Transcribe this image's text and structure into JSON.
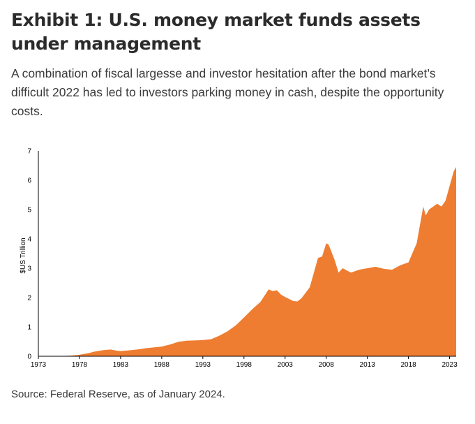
{
  "header": {
    "title": "Exhibit 1: U.S. money market funds assets under management",
    "subtitle": "A combination of fiscal largesse and investor hesitation after the bond market’s difficult 2022 has led to investors parking money in cash, despite the opportunity costs."
  },
  "footer": {
    "source": "Source: Federal Reserve, as of January 2024."
  },
  "colors": {
    "area": "#ee7d31",
    "axis": "#000000"
  },
  "chart_data": {
    "type": "area",
    "title": "",
    "xlabel": "",
    "ylabel": "$US Trillion",
    "xlim": [
      1973,
      2023.8
    ],
    "ylim": [
      0,
      7
    ],
    "x_ticks": [
      "1973",
      "1978",
      "1983",
      "1988",
      "1993",
      "1998",
      "2003",
      "2008",
      "2013",
      "2018",
      "2023"
    ],
    "y_ticks": [
      "0",
      "1",
      "2",
      "3",
      "4",
      "5",
      "6",
      "7"
    ],
    "grid": false,
    "legend": "none",
    "series": [
      {
        "x": [
          1973,
          1975,
          1976,
          1977,
          1978,
          1979,
          1980,
          1981,
          1981.8,
          1982.5,
          1983,
          1984,
          1985,
          1986,
          1987,
          1988,
          1989,
          1990,
          1991,
          1992,
          1993,
          1994,
          1995,
          1996,
          1997,
          1998,
          1999,
          2000,
          2001,
          2001.5,
          2002,
          2002.5,
          2003,
          2004,
          2004.5,
          2005,
          2006,
          2007,
          2007.5,
          2008,
          2008.3,
          2009,
          2009.5,
          2010,
          2011,
          2012,
          2013,
          2014,
          2015,
          2016,
          2017,
          2018,
          2019,
          2019.8,
          2020.1,
          2020.5,
          2021,
          2021.5,
          2022,
          2022.5,
          2023,
          2023.5,
          2023.8
        ],
        "values": [
          0,
          0.01,
          0.01,
          0.02,
          0.05,
          0.1,
          0.17,
          0.21,
          0.23,
          0.19,
          0.18,
          0.2,
          0.23,
          0.27,
          0.3,
          0.33,
          0.4,
          0.49,
          0.53,
          0.54,
          0.55,
          0.58,
          0.7,
          0.85,
          1.05,
          1.32,
          1.6,
          1.85,
          2.28,
          2.22,
          2.25,
          2.1,
          2.02,
          1.88,
          1.87,
          1.98,
          2.35,
          3.35,
          3.4,
          3.85,
          3.8,
          3.3,
          2.85,
          3.0,
          2.85,
          2.95,
          3.0,
          3.05,
          2.98,
          2.95,
          3.1,
          3.2,
          3.85,
          5.1,
          4.8,
          5.0,
          5.1,
          5.2,
          5.1,
          5.3,
          5.8,
          6.3,
          6.45
        ]
      }
    ]
  }
}
